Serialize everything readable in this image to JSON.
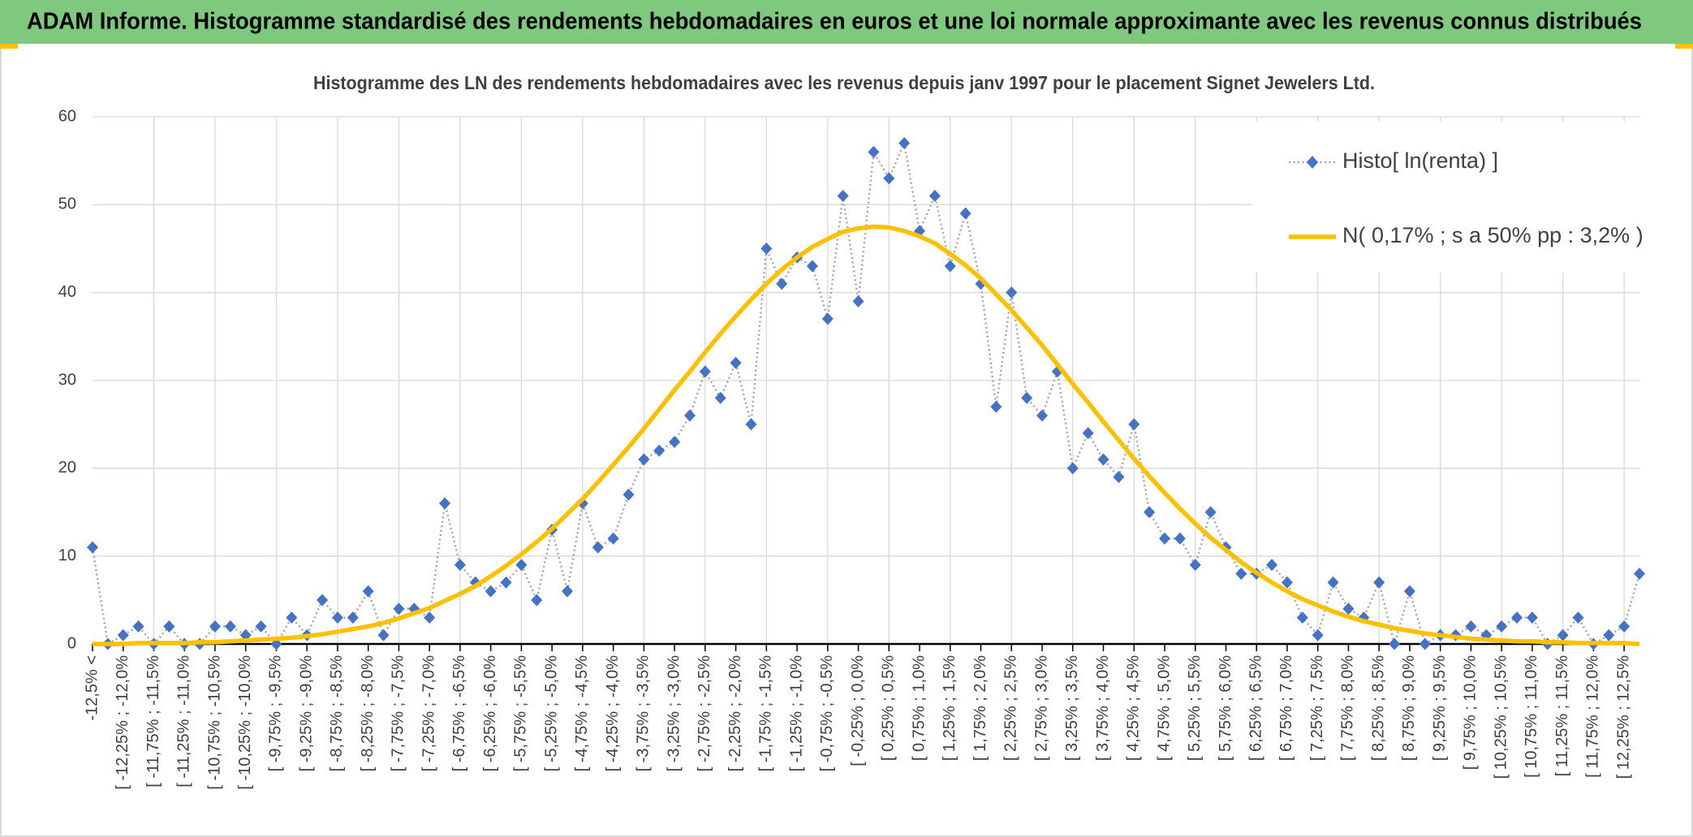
{
  "chart_data": {
    "type": "line",
    "title": "ADAM Informe. Histogramme standardisé des rendements hebdomadaires en euros et une loi normale approximante avec les revenus connus distribués",
    "subtitle": "Histogramme des LN des rendements hebdomadaires avec les revenus depuis janv 1997 pour le placement Signet Jewelers Ltd.",
    "categories": [
      "-12,5% <",
      null,
      "[ -12,25% ; -12,0%",
      null,
      "[ -11,75% ; -11,5%",
      null,
      "[ -11,25% ; -11,0%",
      null,
      "[ -10,75% ; -10,5%",
      null,
      "[ -10,25% ; -10,0%",
      null,
      "[ -9,75% ; -9,5%",
      null,
      "[ -9,25% ; -9,0%",
      null,
      "[ -8,75% ; -8,5%",
      null,
      "[ -8,25% ; -8,0%",
      null,
      "[ -7,75% ; -7,5%",
      null,
      "[ -7,25% ; -7,0%",
      null,
      "[ -6,75% ; -6,5%",
      null,
      "[ -6,25% ; -6,0%",
      null,
      "[ -5,75% ; -5,5%",
      null,
      "[ -5,25% ; -5,0%",
      null,
      "[ -4,75% ; -4,5%",
      null,
      "[ -4,25% ; -4,0%",
      null,
      "[ -3,75% ; -3,5%",
      null,
      "[ -3,25% ; -3,0%",
      null,
      "[ -2,75% ; -2,5%",
      null,
      "[ -2,25% ; -2,0%",
      null,
      "[ -1,75% ; -1,5%",
      null,
      "[ -1,25% ; -1,0%",
      null,
      "[ -0,75% ; -0,5%",
      null,
      "[ -0,25% ; 0,0%",
      null,
      "[ 0,25% ; 0,5%",
      null,
      "[ 0,75% ; 1,0%",
      null,
      "[ 1,25% ; 1,5%",
      null,
      "[ 1,75% ; 2,0%",
      null,
      "[ 2,25% ; 2,5%",
      null,
      "[ 2,75% ; 3,0%",
      null,
      "[ 3,25% ; 3,5%",
      null,
      "[ 3,75% ; 4,0%",
      null,
      "[ 4,25% ; 4,5%",
      null,
      "[ 4,75% ; 5,0%",
      null,
      "[ 5,25% ; 5,5%",
      null,
      "[ 5,75% ; 6,0%",
      null,
      "[ 6,25% ; 6,5%",
      null,
      "[ 6,75% ; 7,0%",
      null,
      "[ 7,25% ; 7,5%",
      null,
      "[ 7,75% ; 8,0%",
      null,
      "[ 8,25% ; 8,5%",
      null,
      "[ 8,75% ; 9,0%",
      null,
      "[ 9,25% ; 9,5%",
      null,
      "[ 9,75% ; 10,0%",
      null,
      "[ 10,25% ; 10,5%",
      null,
      "[ 10,75% ; 11,0%",
      null,
      "[ 11,25% ; 11,5%",
      null,
      "[ 11,75% ; 12,0%",
      null,
      "[ 12,25% ; 12,5%",
      null
    ],
    "series": [
      {
        "name": "Histo[ ln(renta) ]",
        "color": "#4472c4",
        "line_color": "#a6a6a6",
        "line_style": "dotted",
        "marker": "diamond",
        "values": [
          11,
          0,
          1,
          2,
          0,
          2,
          0,
          0,
          2,
          2,
          1,
          2,
          0,
          3,
          1,
          5,
          3,
          3,
          6,
          1,
          4,
          4,
          3,
          16,
          9,
          7,
          6,
          7,
          9,
          5,
          13,
          6,
          16,
          11,
          12,
          17,
          21,
          22,
          23,
          26,
          31,
          28,
          32,
          25,
          45,
          41,
          44,
          43,
          37,
          51,
          39,
          56,
          53,
          57,
          47,
          51,
          43,
          49,
          41,
          27,
          40,
          28,
          26,
          31,
          20,
          24,
          21,
          19,
          25,
          15,
          12,
          12,
          9,
          15,
          11,
          8,
          8,
          9,
          7,
          3,
          1,
          7,
          4,
          3,
          7,
          0,
          6,
          0,
          1,
          1,
          2,
          1,
          2,
          3,
          3,
          0,
          1,
          3,
          0,
          1,
          2,
          8
        ]
      },
      {
        "name": "N( 0,17% ; s a 50% pp : 3,2% )",
        "color": "#ffc000",
        "line_style": "solid",
        "marker": "none",
        "values": [
          0.0,
          0.0,
          0.0,
          0.1,
          0.1,
          0.1,
          0.1,
          0.2,
          0.2,
          0.3,
          0.4,
          0.5,
          0.6,
          0.7,
          0.9,
          1.1,
          1.4,
          1.7,
          2.0,
          2.4,
          2.9,
          3.5,
          4.1,
          4.9,
          5.7,
          6.6,
          7.7,
          8.9,
          10.2,
          11.6,
          13.1,
          14.8,
          16.5,
          18.4,
          20.4,
          22.4,
          24.5,
          26.7,
          28.9,
          31.0,
          33.2,
          35.3,
          37.3,
          39.2,
          41.0,
          42.6,
          44.0,
          45.2,
          46.1,
          46.9,
          47.3,
          47.5,
          47.4,
          47.0,
          46.4,
          45.6,
          44.4,
          43.1,
          41.6,
          39.8,
          38.0,
          36.0,
          34.0,
          31.8,
          29.6,
          27.5,
          25.3,
          23.2,
          21.1,
          19.1,
          17.2,
          15.4,
          13.7,
          12.1,
          10.7,
          9.3,
          8.1,
          7.0,
          6.0,
          5.1,
          4.4,
          3.7,
          3.1,
          2.6,
          2.2,
          1.8,
          1.5,
          1.2,
          1.0,
          0.8,
          0.6,
          0.5,
          0.4,
          0.3,
          0.3,
          0.2,
          0.2,
          0.1,
          0.1,
          0.1,
          0.1,
          0.0
        ]
      }
    ],
    "ylim": [
      0,
      60
    ],
    "yticks": [
      0,
      10,
      20,
      30,
      40,
      50,
      60
    ],
    "grid": true,
    "legend": "top-right"
  }
}
